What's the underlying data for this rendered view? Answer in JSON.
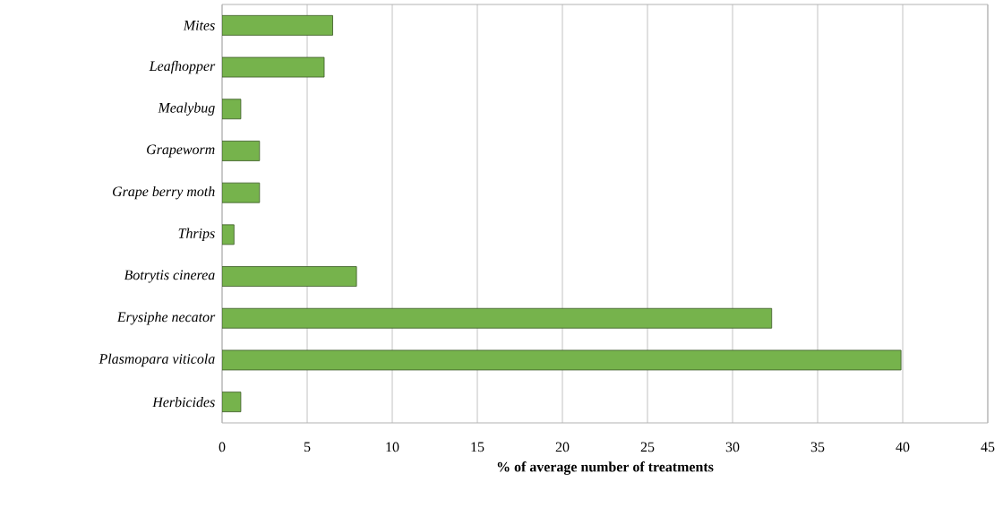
{
  "chart_data": {
    "type": "bar",
    "orientation": "horizontal",
    "xlabel": "% of average number of treatments",
    "categories": [
      "Mites",
      "Leafhopper",
      "Mealybug",
      "Grapeworm",
      "Grape berry moth",
      "Thrips",
      "Botrytis cinerea",
      "Erysiphe necator",
      "Plasmopara viticola",
      "Herbicides"
    ],
    "values": [
      6.5,
      6.0,
      1.1,
      2.2,
      2.2,
      0.7,
      7.9,
      32.3,
      39.9,
      1.1
    ],
    "color": "#76b34c",
    "xlim": [
      0,
      45
    ],
    "xticks": [
      0,
      5,
      10,
      15,
      20,
      25,
      30,
      35,
      40,
      45
    ],
    "grid": "x"
  }
}
